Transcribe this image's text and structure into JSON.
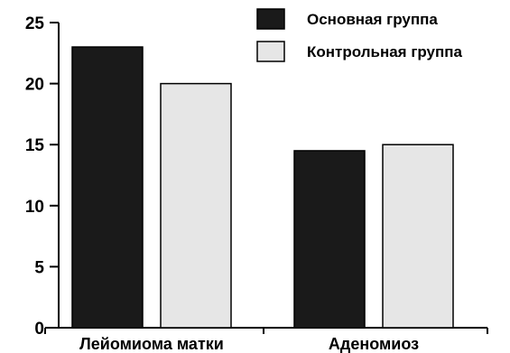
{
  "chart_data": {
    "type": "bar",
    "categories": [
      "Лейомиома матки",
      "Аденомиоз"
    ],
    "series": [
      {
        "name": "Основная группа",
        "values": [
          23,
          14.5
        ],
        "color": "#1a1a1a"
      },
      {
        "name": "Контрольная группа",
        "values": [
          20,
          15
        ],
        "color": "#e6e6e6"
      }
    ],
    "yticks": [
      "0",
      "5",
      "10",
      "15",
      "20",
      "25"
    ],
    "ylim": [
      0,
      25
    ],
    "grid": false,
    "legend_position": "top-right"
  }
}
